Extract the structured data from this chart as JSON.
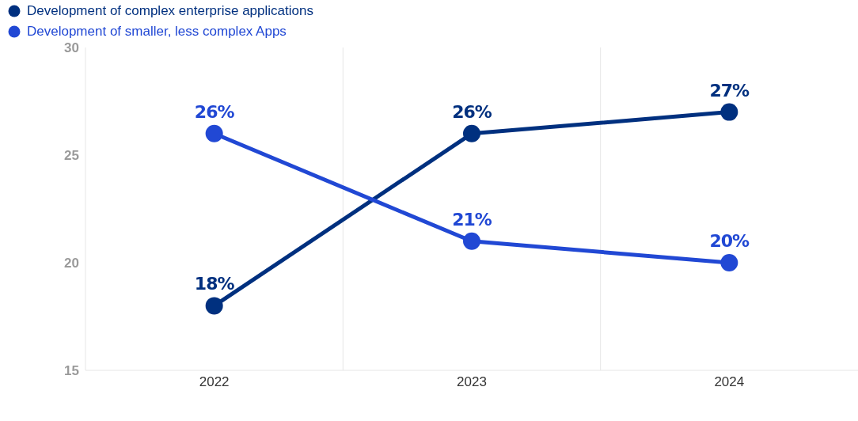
{
  "chart_data": {
    "type": "line",
    "categories": [
      "2022",
      "2023",
      "2024"
    ],
    "series": [
      {
        "name": "Development of complex enterprise applications",
        "color": "#00307f",
        "values": [
          18,
          26,
          27
        ],
        "value_labels": [
          "18%",
          "26%",
          "27%"
        ]
      },
      {
        "name": "Development of smaller, less complex Apps",
        "color": "#2148d4",
        "values": [
          26,
          21,
          20
        ],
        "value_labels": [
          "26%",
          "21%",
          "20%"
        ]
      }
    ],
    "ylim": [
      15,
      30
    ],
    "yticks": [
      15,
      20,
      25,
      30
    ],
    "grid": "x",
    "legend": "top left",
    "marker": "circle",
    "line_style": "solid"
  }
}
